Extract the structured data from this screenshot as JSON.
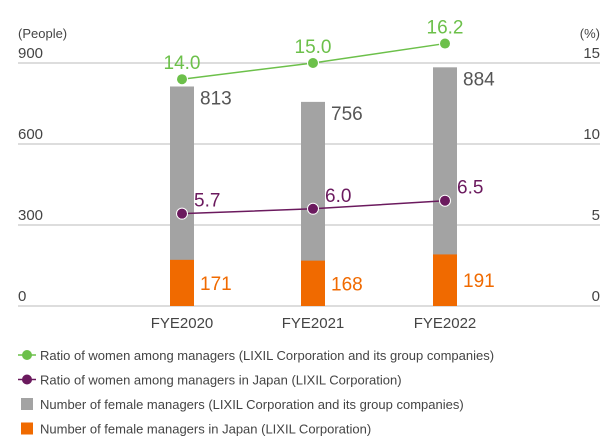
{
  "chart_data": {
    "type": "bar",
    "y_label": "(People)",
    "y2_label": "(%)",
    "categories": [
      "FYE2020",
      "FYE2021",
      "FYE2022"
    ],
    "ylim": [
      0,
      900
    ],
    "yticks": [
      0,
      300,
      600,
      900
    ],
    "y2lim": [
      0,
      15
    ],
    "y2ticks": [
      0,
      5,
      10,
      15
    ],
    "grid": true,
    "series": [
      {
        "name": "Ratio of women among managers (LIXIL Corporation and its group companies)",
        "type": "line",
        "axis": "y2",
        "color": "#6cc04a",
        "values": [
          14.0,
          15.0,
          16.2
        ],
        "value_labels": [
          "14.0",
          "15.0",
          "16.2"
        ]
      },
      {
        "name": "Ratio of women among managers in Japan (LIXIL Corporation)",
        "type": "line",
        "axis": "y2",
        "color": "#6b1a5e",
        "values": [
          5.7,
          6.0,
          6.5
        ],
        "value_labels": [
          "5.7",
          "6.0",
          "6.5"
        ]
      },
      {
        "name": "Number of female managers (LIXIL Corporation and its group companies)",
        "type": "bar",
        "color": "#a3a3a3",
        "values": [
          813,
          756,
          884
        ]
      },
      {
        "name": "Number of female managers in Japan (LIXIL Corporation)",
        "type": "bar",
        "color": "#f06a00",
        "values": [
          171,
          168,
          191
        ]
      }
    ]
  }
}
